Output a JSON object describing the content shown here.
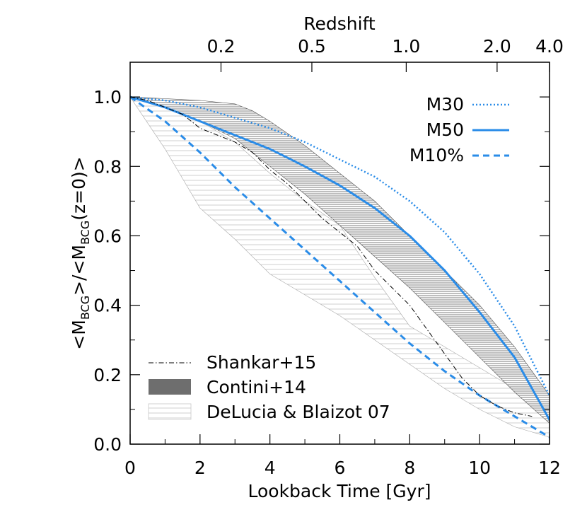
{
  "chart_data": {
    "type": "line",
    "xlabel": "Lookback Time [Gyr]",
    "ylabel": "<M_BCG>/<M_BCG(z=0)>",
    "ylabel_parts": {
      "lt1": "<M",
      "sub1": "BCG",
      "mid": ">/<M",
      "sub2": "BCG",
      "tail": "(z=0)>"
    },
    "top_axis_label": "Redshift",
    "xlim": [
      0,
      12
    ],
    "ylim": [
      0.0,
      1.1
    ],
    "x_ticks": [
      0,
      2,
      4,
      6,
      8,
      10,
      12
    ],
    "x_tick_labels": [
      "0",
      "2",
      "4",
      "6",
      "8",
      "10",
      "12"
    ],
    "y_ticks": [
      0.0,
      0.2,
      0.4,
      0.6,
      0.8,
      1.0
    ],
    "y_tick_labels": [
      "0.0",
      "0.2",
      "0.4",
      "0.6",
      "0.8",
      "1.0"
    ],
    "top_ticks": [
      {
        "label": "0.2",
        "t": 2.6
      },
      {
        "label": "0.5",
        "t": 5.2
      },
      {
        "label": "1.0",
        "t": 7.9
      },
      {
        "label": "2.0",
        "t": 10.5
      },
      {
        "label": "4.0",
        "t": 12.1
      }
    ],
    "series": [
      {
        "name": "M30",
        "style": "dotted",
        "color": "#2a8ce8",
        "x": [
          0,
          1,
          2,
          3,
          4,
          5,
          6,
          7,
          8,
          9,
          10,
          11,
          12
        ],
        "y": [
          1.0,
          0.99,
          0.97,
          0.94,
          0.91,
          0.87,
          0.82,
          0.77,
          0.7,
          0.61,
          0.49,
          0.34,
          0.14
        ]
      },
      {
        "name": "M50",
        "style": "solid",
        "color": "#2a8ce8",
        "x": [
          0,
          1,
          2,
          3,
          4,
          5,
          6,
          7,
          8,
          9,
          10,
          11,
          12
        ],
        "y": [
          1.0,
          0.97,
          0.93,
          0.89,
          0.85,
          0.8,
          0.745,
          0.68,
          0.6,
          0.5,
          0.38,
          0.25,
          0.07
        ]
      },
      {
        "name": "M10%",
        "style": "dashed",
        "color": "#2a8ce8",
        "x": [
          0,
          1,
          2,
          3,
          4,
          5,
          6,
          7,
          8,
          9,
          10,
          11,
          12
        ],
        "y": [
          1.0,
          0.93,
          0.84,
          0.74,
          0.65,
          0.56,
          0.47,
          0.38,
          0.29,
          0.21,
          0.14,
          0.08,
          0.02
        ]
      },
      {
        "name": "Shankar+15",
        "style": "dashdot",
        "color": "#000000",
        "x": [
          0,
          0.5,
          1,
          1.5,
          2,
          2.5,
          3,
          3.5,
          4,
          4.5,
          5,
          5.5,
          6,
          6.5,
          7,
          7.5,
          8,
          8.5,
          9,
          9.5,
          10,
          10.5,
          11,
          11.5
        ],
        "y": [
          1.0,
          0.99,
          0.97,
          0.95,
          0.91,
          0.89,
          0.87,
          0.84,
          0.79,
          0.75,
          0.7,
          0.65,
          0.61,
          0.57,
          0.5,
          0.45,
          0.4,
          0.33,
          0.26,
          0.19,
          0.14,
          0.11,
          0.09,
          0.08
        ]
      }
    ],
    "bands": [
      {
        "name": "Contini+14",
        "hatch": "dense",
        "color": "#7a7a7a",
        "x": [
          0,
          1,
          2,
          3,
          3.5,
          4,
          5,
          6,
          7,
          8,
          9,
          10,
          11,
          12
        ],
        "upper": [
          1.0,
          0.995,
          0.99,
          0.98,
          0.96,
          0.93,
          0.86,
          0.78,
          0.7,
          0.6,
          0.5,
          0.4,
          0.28,
          0.14
        ],
        "lower": [
          1.0,
          0.97,
          0.93,
          0.88,
          0.84,
          0.8,
          0.72,
          0.63,
          0.54,
          0.45,
          0.35,
          0.25,
          0.15,
          0.06
        ]
      },
      {
        "name": "DeLucia & Blaizot 07",
        "hatch": "sparse",
        "color": "#bdbdbd",
        "x": [
          0,
          1,
          2,
          3,
          4,
          5,
          6,
          7,
          8,
          9,
          10,
          11,
          12
        ],
        "upper": [
          1.0,
          0.98,
          0.93,
          0.87,
          0.78,
          0.7,
          0.63,
          0.48,
          0.34,
          0.28,
          0.22,
          0.16,
          0.09
        ],
        "lower": [
          1.0,
          0.85,
          0.68,
          0.59,
          0.49,
          0.43,
          0.37,
          0.3,
          0.23,
          0.16,
          0.1,
          0.05,
          0.02
        ]
      }
    ],
    "legend_top_right": [
      "M30",
      "M50",
      "M10%"
    ],
    "legend_bottom_left": [
      "Shankar+15",
      "Contini+14",
      "DeLucia & Blaizot 07"
    ],
    "grid": false
  }
}
